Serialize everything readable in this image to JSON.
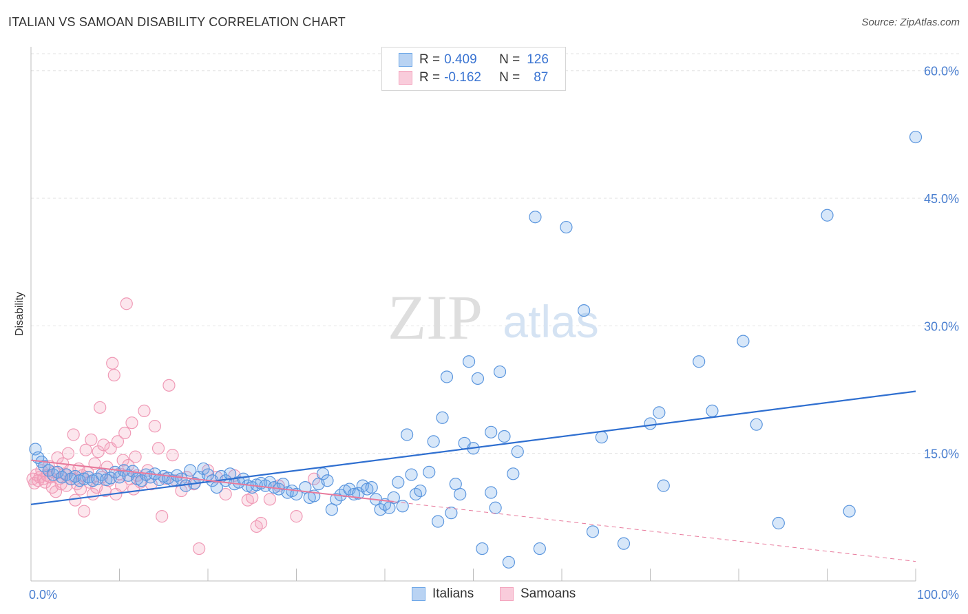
{
  "title": "ITALIAN VS SAMOAN DISABILITY CORRELATION CHART",
  "source": "Source: ZipAtlas.com",
  "watermark": {
    "zip": "ZIP",
    "atlas": "atlas"
  },
  "legend": {
    "italians": {
      "r_label": "R =",
      "r_value": "0.409",
      "n_label": "N =",
      "n_value": "126"
    },
    "samoans": {
      "r_label": "R =",
      "r_value": "-0.162",
      "n_label": "N =",
      "n_value": "87"
    }
  },
  "colors": {
    "italians": "#6fa8e8",
    "italians_line": "#2f6fd0",
    "samoans": "#f4a6bf",
    "samoans_line": "#e87a9c",
    "tick_text": "#4a7fd0"
  },
  "chart_data": {
    "type": "scatter",
    "title": "ITALIAN VS SAMOAN DISABILITY CORRELATION CHART",
    "xlabel": "",
    "ylabel": "Disability",
    "xlim": [
      0,
      100
    ],
    "ylim": [
      0,
      62
    ],
    "x_tick_labels": [
      {
        "value": 0,
        "label": "0.0%"
      },
      {
        "value": 100,
        "label": "100.0%"
      }
    ],
    "y_tick_labels": [
      {
        "value": 15,
        "label": "15.0%"
      },
      {
        "value": 30,
        "label": "30.0%"
      },
      {
        "value": 45,
        "label": "45.0%"
      },
      {
        "value": 60,
        "label": "60.0%"
      }
    ],
    "grid": true,
    "legend_placement": "top-center",
    "series": [
      {
        "name": "Italians",
        "trend": {
          "x": [
            0,
            100
          ],
          "y": [
            9.0,
            22.3
          ],
          "style": "solid"
        },
        "points": [
          [
            0.5,
            15.5
          ],
          [
            0.8,
            14.5
          ],
          [
            1.2,
            14.0
          ],
          [
            1.5,
            13.5
          ],
          [
            2,
            13
          ],
          [
            2.5,
            12.5
          ],
          [
            3,
            12.8
          ],
          [
            3.5,
            12.2
          ],
          [
            4,
            12.5
          ],
          [
            4.5,
            12
          ],
          [
            5,
            12.3
          ],
          [
            5.5,
            11.8
          ],
          [
            6,
            12
          ],
          [
            6.5,
            12.2
          ],
          [
            7,
            11.8
          ],
          [
            7.5,
            12
          ],
          [
            8,
            12.5
          ],
          [
            8.5,
            11.9
          ],
          [
            9,
            12.1
          ],
          [
            9.5,
            12.8
          ],
          [
            10,
            12.2
          ],
          [
            10.5,
            13
          ],
          [
            11,
            12.4
          ],
          [
            11.5,
            12.9
          ],
          [
            12,
            12
          ],
          [
            12.5,
            11.8
          ],
          [
            13,
            12.5
          ],
          [
            13.5,
            12.2
          ],
          [
            14,
            12.6
          ],
          [
            14.5,
            11.9
          ],
          [
            15,
            12.3
          ],
          [
            15.5,
            12.1
          ],
          [
            16,
            11.8
          ],
          [
            16.5,
            12.4
          ],
          [
            17,
            12
          ],
          [
            17.5,
            11.2
          ],
          [
            18,
            13
          ],
          [
            18.5,
            11.5
          ],
          [
            19,
            12.2
          ],
          [
            19.5,
            13.2
          ],
          [
            20,
            12.5
          ],
          [
            20.5,
            11.8
          ],
          [
            21,
            11
          ],
          [
            21.5,
            12.3
          ],
          [
            22,
            11.8
          ],
          [
            22.5,
            12.6
          ],
          [
            23,
            11.4
          ],
          [
            23.5,
            11.6
          ],
          [
            24,
            12
          ],
          [
            24.5,
            11.2
          ],
          [
            25,
            11
          ],
          [
            25.5,
            11.3
          ],
          [
            26,
            11.5
          ],
          [
            26.5,
            11.2
          ],
          [
            27,
            11.6
          ],
          [
            27.5,
            11
          ],
          [
            28,
            10.8
          ],
          [
            28.5,
            11.4
          ],
          [
            29,
            10.4
          ],
          [
            29.5,
            10.6
          ],
          [
            30,
            10.2
          ],
          [
            31,
            11
          ],
          [
            31.5,
            9.8
          ],
          [
            32,
            10
          ],
          [
            32.5,
            11.4
          ],
          [
            33,
            12.6
          ],
          [
            33.5,
            11.8
          ],
          [
            34,
            8.4
          ],
          [
            34.5,
            9.6
          ],
          [
            35,
            10.1
          ],
          [
            35.5,
            10.6
          ],
          [
            36,
            10.8
          ],
          [
            36.5,
            10.2
          ],
          [
            37,
            10.3
          ],
          [
            37.5,
            11.2
          ],
          [
            38,
            10.8
          ],
          [
            38.5,
            11
          ],
          [
            39,
            9.6
          ],
          [
            39.5,
            8.4
          ],
          [
            40,
            9
          ],
          [
            40.5,
            8.6
          ],
          [
            41,
            9.8
          ],
          [
            41.5,
            11.6
          ],
          [
            42,
            8.8
          ],
          [
            42.5,
            17.2
          ],
          [
            43,
            12.5
          ],
          [
            43.5,
            10.2
          ],
          [
            44,
            10.6
          ],
          [
            45,
            12.8
          ],
          [
            45.5,
            16.4
          ],
          [
            46,
            7
          ],
          [
            46.5,
            19.2
          ],
          [
            47,
            24
          ],
          [
            47.5,
            8
          ],
          [
            48,
            11.4
          ],
          [
            48.5,
            10.2
          ],
          [
            49,
            16.2
          ],
          [
            49.5,
            25.8
          ],
          [
            50,
            15.6
          ],
          [
            50.5,
            23.8
          ],
          [
            51,
            3.8
          ],
          [
            52,
            10.4
          ],
          [
            52.5,
            8.6
          ],
          [
            52,
            17.5
          ],
          [
            53,
            24.6
          ],
          [
            53.5,
            17
          ],
          [
            54,
            2.2
          ],
          [
            54.5,
            12.6
          ],
          [
            55,
            15.2
          ],
          [
            57,
            42.8
          ],
          [
            57.5,
            3.8
          ],
          [
            60.5,
            41.6
          ],
          [
            62.5,
            31.8
          ],
          [
            63.5,
            5.8
          ],
          [
            64.5,
            16.9
          ],
          [
            67,
            4.4
          ],
          [
            70,
            18.5
          ],
          [
            71,
            19.8
          ],
          [
            71.5,
            11.2
          ],
          [
            75.5,
            25.8
          ],
          [
            77,
            20
          ],
          [
            80.5,
            28.2
          ],
          [
            82,
            18.4
          ],
          [
            84.5,
            6.8
          ],
          [
            90,
            43
          ],
          [
            92.5,
            8.2
          ],
          [
            100,
            52.2
          ]
        ]
      },
      {
        "name": "Samoans",
        "trend": {
          "x": [
            0,
            100
          ],
          "y": [
            14.2,
            2.3
          ],
          "style": "solid-then-dashed",
          "solid_until_x": 41
        },
        "points": [
          [
            0.2,
            12
          ],
          [
            0.4,
            11.5
          ],
          [
            0.6,
            12.5
          ],
          [
            0.8,
            11.8
          ],
          [
            1,
            12.2
          ],
          [
            1.2,
            13
          ],
          [
            1.4,
            12
          ],
          [
            1.6,
            11.6
          ],
          [
            1.8,
            12.4
          ],
          [
            2,
            13.5
          ],
          [
            2.2,
            12.2
          ],
          [
            2.4,
            11
          ],
          [
            2.6,
            12.8
          ],
          [
            2.8,
            10.5
          ],
          [
            3,
            14.5
          ],
          [
            3.2,
            12
          ],
          [
            3.4,
            11.4
          ],
          [
            3.6,
            13.8
          ],
          [
            3.8,
            12.6
          ],
          [
            4,
            11.2
          ],
          [
            4.2,
            15
          ],
          [
            4.4,
            13
          ],
          [
            4.6,
            12
          ],
          [
            4.8,
            17.2
          ],
          [
            5,
            9.5
          ],
          [
            5.2,
            11.4
          ],
          [
            5.4,
            13.2
          ],
          [
            5.6,
            10.8
          ],
          [
            5.8,
            12.4
          ],
          [
            6,
            8.2
          ],
          [
            6.2,
            15.4
          ],
          [
            6.4,
            12.8
          ],
          [
            6.6,
            11.6
          ],
          [
            6.8,
            16.6
          ],
          [
            7,
            10.2
          ],
          [
            7.2,
            13.8
          ],
          [
            7.4,
            11
          ],
          [
            7.6,
            15.2
          ],
          [
            7.8,
            20.4
          ],
          [
            8,
            12.2
          ],
          [
            8.2,
            16
          ],
          [
            8.4,
            10.6
          ],
          [
            8.6,
            13.4
          ],
          [
            8.8,
            11.8
          ],
          [
            9,
            15.6
          ],
          [
            9.2,
            25.6
          ],
          [
            9.4,
            24.2
          ],
          [
            9.6,
            10.2
          ],
          [
            9.8,
            16.4
          ],
          [
            10,
            12.6
          ],
          [
            10.2,
            11.2
          ],
          [
            10.4,
            14.2
          ],
          [
            10.6,
            17.4
          ],
          [
            10.8,
            32.6
          ],
          [
            11,
            13.6
          ],
          [
            11.2,
            12
          ],
          [
            11.4,
            18.6
          ],
          [
            11.6,
            10.8
          ],
          [
            11.8,
            14.6
          ],
          [
            12,
            12.4
          ],
          [
            12.4,
            11.6
          ],
          [
            12.8,
            20
          ],
          [
            13.2,
            13
          ],
          [
            13.6,
            11.4
          ],
          [
            14,
            18.2
          ],
          [
            14.4,
            15.6
          ],
          [
            14.8,
            7.6
          ],
          [
            15.2,
            12
          ],
          [
            15.6,
            23
          ],
          [
            16,
            14.8
          ],
          [
            16.4,
            11.8
          ],
          [
            17,
            10.6
          ],
          [
            17.6,
            12.2
          ],
          [
            18.4,
            11.4
          ],
          [
            19,
            3.8
          ],
          [
            20,
            13
          ],
          [
            21,
            12.2
          ],
          [
            22,
            10.2
          ],
          [
            23,
            12.4
          ],
          [
            24.5,
            9.5
          ],
          [
            25,
            9.8
          ],
          [
            25.5,
            6.4
          ],
          [
            26,
            6.8
          ],
          [
            27,
            9.6
          ],
          [
            28,
            11.2
          ],
          [
            30,
            7.6
          ],
          [
            32,
            12
          ]
        ]
      }
    ]
  },
  "bottom_legend": {
    "italians": "Italians",
    "samoans": "Samoans"
  }
}
